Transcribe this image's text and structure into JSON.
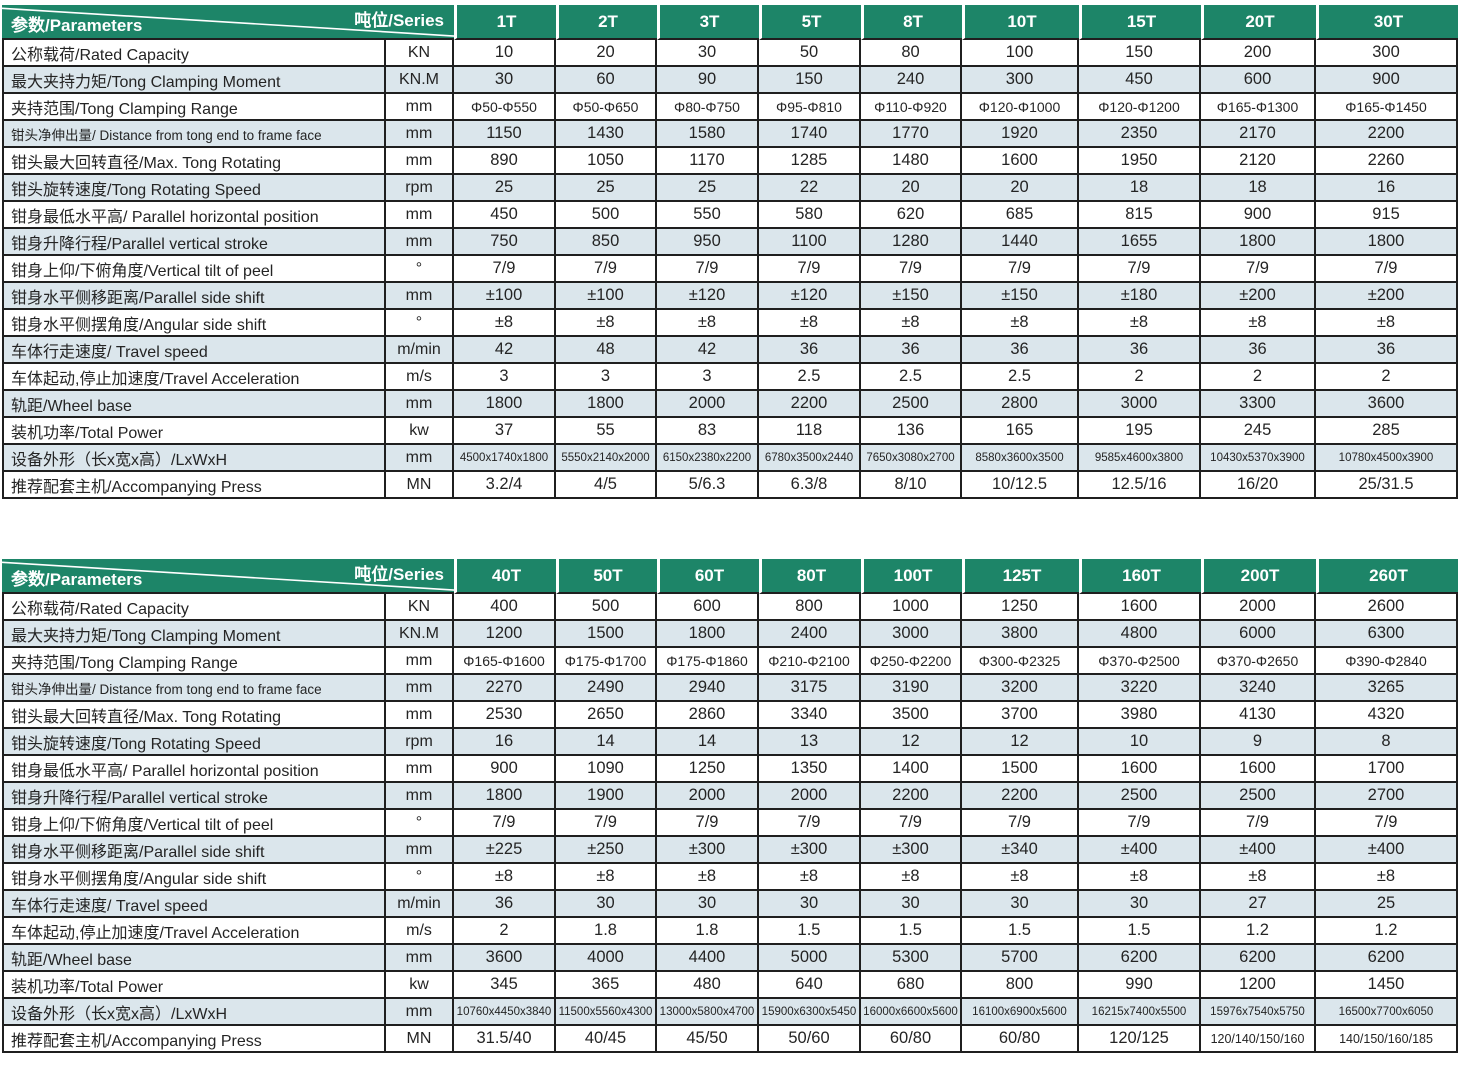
{
  "colors": {
    "header_green": "#1d8568",
    "row_alt": "#dbe6ec",
    "grid_line": "#1f1f1f",
    "header_text": "#ffffff",
    "body_text": "#242424"
  },
  "corner": {
    "param_label": "参数/Parameters",
    "series_label": "吨位/Series"
  },
  "parameters": [
    {
      "label": "公称载荷/Rated Capacity",
      "unit": "KN"
    },
    {
      "label": "最大夹持力矩/Tong Clamping Moment",
      "unit": "KN.M"
    },
    {
      "label": "夹持范围/Tong Clamping Range",
      "unit": "mm"
    },
    {
      "label": "钳头净伸出量/ Distance from tong end to frame face",
      "unit": "mm"
    },
    {
      "label": "钳头最大回转直径/Max. Tong Rotating",
      "unit": "mm"
    },
    {
      "label": "钳头旋转速度/Tong Rotating Speed",
      "unit": "rpm"
    },
    {
      "label": "钳身最低水平高/ Parallel horizontal position",
      "unit": "mm"
    },
    {
      "label": "钳身升降行程/Parallel vertical stroke",
      "unit": "mm"
    },
    {
      "label": "钳身上仰/下俯角度/Vertical tilt of peel",
      "unit": "°"
    },
    {
      "label": "钳身水平侧移距离/Parallel side shift",
      "unit": "mm"
    },
    {
      "label": "钳身水平侧摆角度/Angular side shift",
      "unit": "°"
    },
    {
      "label": "车体行走速度/ Travel speed",
      "unit": "m/min"
    },
    {
      "label": "车体起动,停止加速度/Travel Acceleration",
      "unit": "m/s"
    },
    {
      "label": "轨距/Wheel base",
      "unit": "mm"
    },
    {
      "label": "装机功率/Total Power",
      "unit": "kw"
    },
    {
      "label": "设备外形（长x宽x高）/LxWxH",
      "unit": "mm"
    },
    {
      "label": "推荐配套主机/Accompanying Press",
      "unit": "MN"
    }
  ],
  "tables": [
    {
      "series": [
        "1T",
        "2T",
        "3T",
        "5T",
        "8T",
        "10T",
        "15T",
        "20T",
        "30T"
      ],
      "values": [
        [
          "10",
          "20",
          "30",
          "50",
          "80",
          "100",
          "150",
          "200",
          "300"
        ],
        [
          "30",
          "60",
          "90",
          "150",
          "240",
          "300",
          "450",
          "600",
          "900"
        ],
        [
          "Φ50-Φ550",
          "Φ50-Φ650",
          "Φ80-Φ750",
          "Φ95-Φ810",
          "Φ110-Φ920",
          "Φ120-Φ1000",
          "Φ120-Φ1200",
          "Φ165-Φ1300",
          "Φ165-Φ1450"
        ],
        [
          "1150",
          "1430",
          "1580",
          "1740",
          "1770",
          "1920",
          "2350",
          "2170",
          "2200"
        ],
        [
          "890",
          "1050",
          "1170",
          "1285",
          "1480",
          "1600",
          "1950",
          "2120",
          "2260"
        ],
        [
          "25",
          "25",
          "25",
          "22",
          "20",
          "20",
          "18",
          "18",
          "16"
        ],
        [
          "450",
          "500",
          "550",
          "580",
          "620",
          "685",
          "815",
          "900",
          "915"
        ],
        [
          "750",
          "850",
          "950",
          "1100",
          "1280",
          "1440",
          "1655",
          "1800",
          "1800"
        ],
        [
          "7/9",
          "7/9",
          "7/9",
          "7/9",
          "7/9",
          "7/9",
          "7/9",
          "7/9",
          "7/9"
        ],
        [
          "±100",
          "±100",
          "±120",
          "±120",
          "±150",
          "±150",
          "±180",
          "±200",
          "±200"
        ],
        [
          "±8",
          "±8",
          "±8",
          "±8",
          "±8",
          "±8",
          "±8",
          "±8",
          "±8"
        ],
        [
          "42",
          "48",
          "42",
          "36",
          "36",
          "36",
          "36",
          "36",
          "36"
        ],
        [
          "3",
          "3",
          "3",
          "2.5",
          "2.5",
          "2.5",
          "2",
          "2",
          "2"
        ],
        [
          "1800",
          "1800",
          "2000",
          "2200",
          "2500",
          "2800",
          "3000",
          "3300",
          "3600"
        ],
        [
          "37",
          "55",
          "83",
          "118",
          "136",
          "165",
          "195",
          "245",
          "285"
        ],
        [
          "4500x1740x1800",
          "5550x2140x2000",
          "6150x2380x2200",
          "6780x3500x2440",
          "7650x3080x2700",
          "8580x3600x3500",
          "9585x4600x3800",
          "10430x5370x3900",
          "10780x4500x3900"
        ],
        [
          "3.2/4",
          "4/5",
          "5/6.3",
          "6.3/8",
          "8/10",
          "10/12.5",
          "12.5/16",
          "16/20",
          "25/31.5"
        ]
      ]
    },
    {
      "series": [
        "40T",
        "50T",
        "60T",
        "80T",
        "100T",
        "125T",
        "160T",
        "200T",
        "260T"
      ],
      "values": [
        [
          "400",
          "500",
          "600",
          "800",
          "1000",
          "1250",
          "1600",
          "2000",
          "2600"
        ],
        [
          "1200",
          "1500",
          "1800",
          "2400",
          "3000",
          "3800",
          "4800",
          "6000",
          "6300"
        ],
        [
          "Φ165-Φ1600",
          "Φ175-Φ1700",
          "Φ175-Φ1860",
          "Φ210-Φ2100",
          "Φ250-Φ2200",
          "Φ300-Φ2325",
          "Φ370-Φ2500",
          "Φ370-Φ2650",
          "Φ390-Φ2840"
        ],
        [
          "2270",
          "2490",
          "2940",
          "3175",
          "3190",
          "3200",
          "3220",
          "3240",
          "3265"
        ],
        [
          "2530",
          "2650",
          "2860",
          "3340",
          "3500",
          "3700",
          "3980",
          "4130",
          "4320"
        ],
        [
          "16",
          "14",
          "14",
          "13",
          "12",
          "12",
          "10",
          "9",
          "8"
        ],
        [
          "900",
          "1090",
          "1250",
          "1350",
          "1400",
          "1500",
          "1600",
          "1600",
          "1700"
        ],
        [
          "1800",
          "1900",
          "2000",
          "2000",
          "2200",
          "2200",
          "2500",
          "2500",
          "2700"
        ],
        [
          "7/9",
          "7/9",
          "7/9",
          "7/9",
          "7/9",
          "7/9",
          "7/9",
          "7/9",
          "7/9"
        ],
        [
          "±225",
          "±250",
          "±300",
          "±300",
          "±300",
          "±340",
          "±400",
          "±400",
          "±400"
        ],
        [
          "±8",
          "±8",
          "±8",
          "±8",
          "±8",
          "±8",
          "±8",
          "±8",
          "±8"
        ],
        [
          "36",
          "30",
          "30",
          "30",
          "30",
          "30",
          "30",
          "27",
          "25"
        ],
        [
          "2",
          "1.8",
          "1.8",
          "1.5",
          "1.5",
          "1.5",
          "1.5",
          "1.2",
          "1.2"
        ],
        [
          "3600",
          "4000",
          "4400",
          "5000",
          "5300",
          "5700",
          "6200",
          "6200",
          "6200"
        ],
        [
          "345",
          "365",
          "480",
          "640",
          "680",
          "800",
          "990",
          "1200",
          "1450"
        ],
        [
          "10760x4450x3840",
          "11500x5560x4300",
          "13000x5800x4700",
          "15900x6300x5450",
          "16000x6600x5600",
          "16100x6900x5600",
          "16215x7400x5500",
          "15976x7540x5750",
          "16500x7700x6050"
        ],
        [
          "31.5/40",
          "40/45",
          "45/50",
          "50/60",
          "60/80",
          "60/80",
          "120/125",
          "120/140/150/160",
          "140/150/160/185"
        ]
      ]
    }
  ]
}
